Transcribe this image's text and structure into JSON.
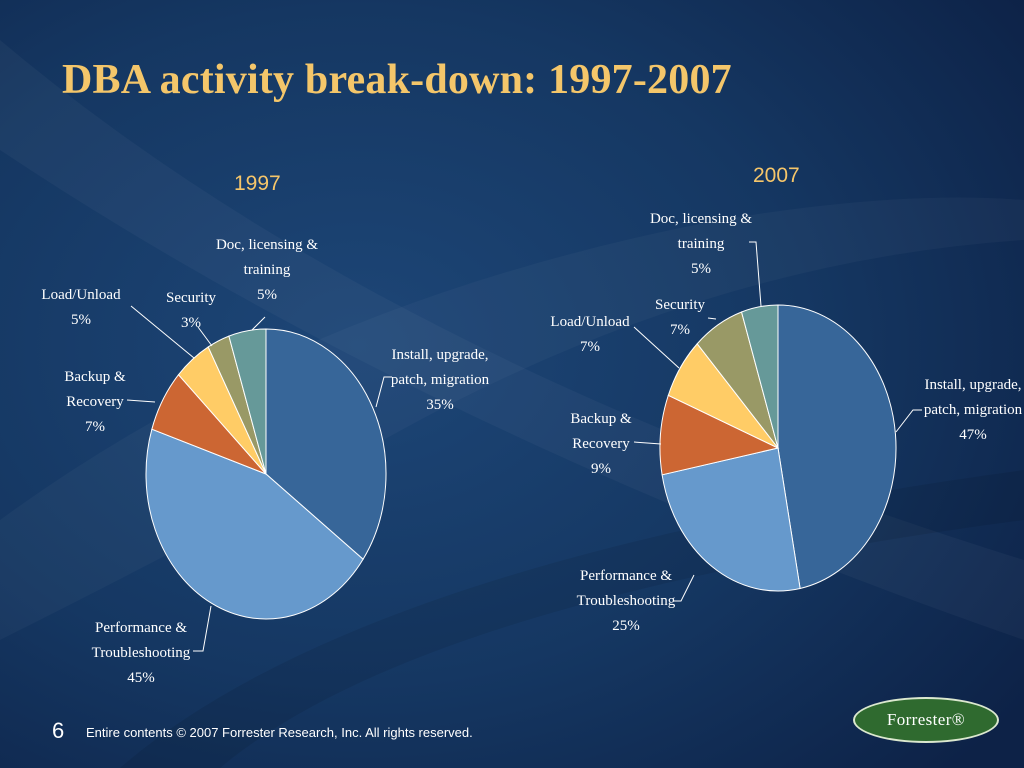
{
  "slide": {
    "title": "DBA activity break-down: 1997-2007",
    "page_number": "6",
    "footer": "Entire contents © 2007  Forrester Research, Inc. All rights reserved.",
    "logo_text": "Forrester®"
  },
  "colors": {
    "background": "#10294f",
    "title": "#f4c66a",
    "install": "#376699",
    "performance": "#6699cc",
    "backup": "#cc6633",
    "load": "#ffcc66",
    "security": "#999966",
    "doc": "#669999"
  },
  "chart_data": [
    {
      "type": "pie",
      "title": "1997",
      "slices": [
        {
          "label": "Install, upgrade, patch, migration",
          "lines": [
            "Install, upgrade,",
            "patch, migration"
          ],
          "value": 35,
          "pct": "35%",
          "color": "#376699"
        },
        {
          "label": "Performance & Troubleshooting",
          "lines": [
            "Performance &",
            "Troubleshooting"
          ],
          "value": 45,
          "pct": "45%",
          "color": "#6699cc"
        },
        {
          "label": "Backup & Recovery",
          "lines": [
            "Backup &",
            "Recovery"
          ],
          "value": 7,
          "pct": "7%",
          "color": "#cc6633"
        },
        {
          "label": "Load/Unload",
          "lines": [
            "Load/Unload"
          ],
          "value": 5,
          "pct": "5%",
          "color": "#ffcc66"
        },
        {
          "label": "Security",
          "lines": [
            "Security"
          ],
          "value": 3,
          "pct": "3%",
          "color": "#999966"
        },
        {
          "label": "Doc, licensing & training",
          "lines": [
            "Doc, licensing &",
            "training"
          ],
          "value": 5,
          "pct": "5%",
          "color": "#669999"
        }
      ]
    },
    {
      "type": "pie",
      "title": "2007",
      "slices": [
        {
          "label": "Install, upgrade, patch, migration",
          "lines": [
            "Install, upgrade,",
            "patch, migration"
          ],
          "value": 47,
          "pct": "47%",
          "color": "#376699"
        },
        {
          "label": "Performance & Troubleshooting",
          "lines": [
            "Performance &",
            "Troubleshooting"
          ],
          "value": 25,
          "pct": "25%",
          "color": "#6699cc"
        },
        {
          "label": "Backup & Recovery",
          "lines": [
            "Backup &",
            "Recovery"
          ],
          "value": 9,
          "pct": "9%",
          "color": "#cc6633"
        },
        {
          "label": "Load/Unload",
          "lines": [
            "Load/Unload"
          ],
          "value": 7,
          "pct": "7%",
          "color": "#ffcc66"
        },
        {
          "label": "Security",
          "lines": [
            "Security"
          ],
          "value": 7,
          "pct": "7%",
          "color": "#999966"
        },
        {
          "label": "Doc, licensing & training",
          "lines": [
            "Doc, licensing &",
            "training"
          ],
          "value": 5,
          "pct": "5%",
          "color": "#669999"
        }
      ]
    }
  ]
}
